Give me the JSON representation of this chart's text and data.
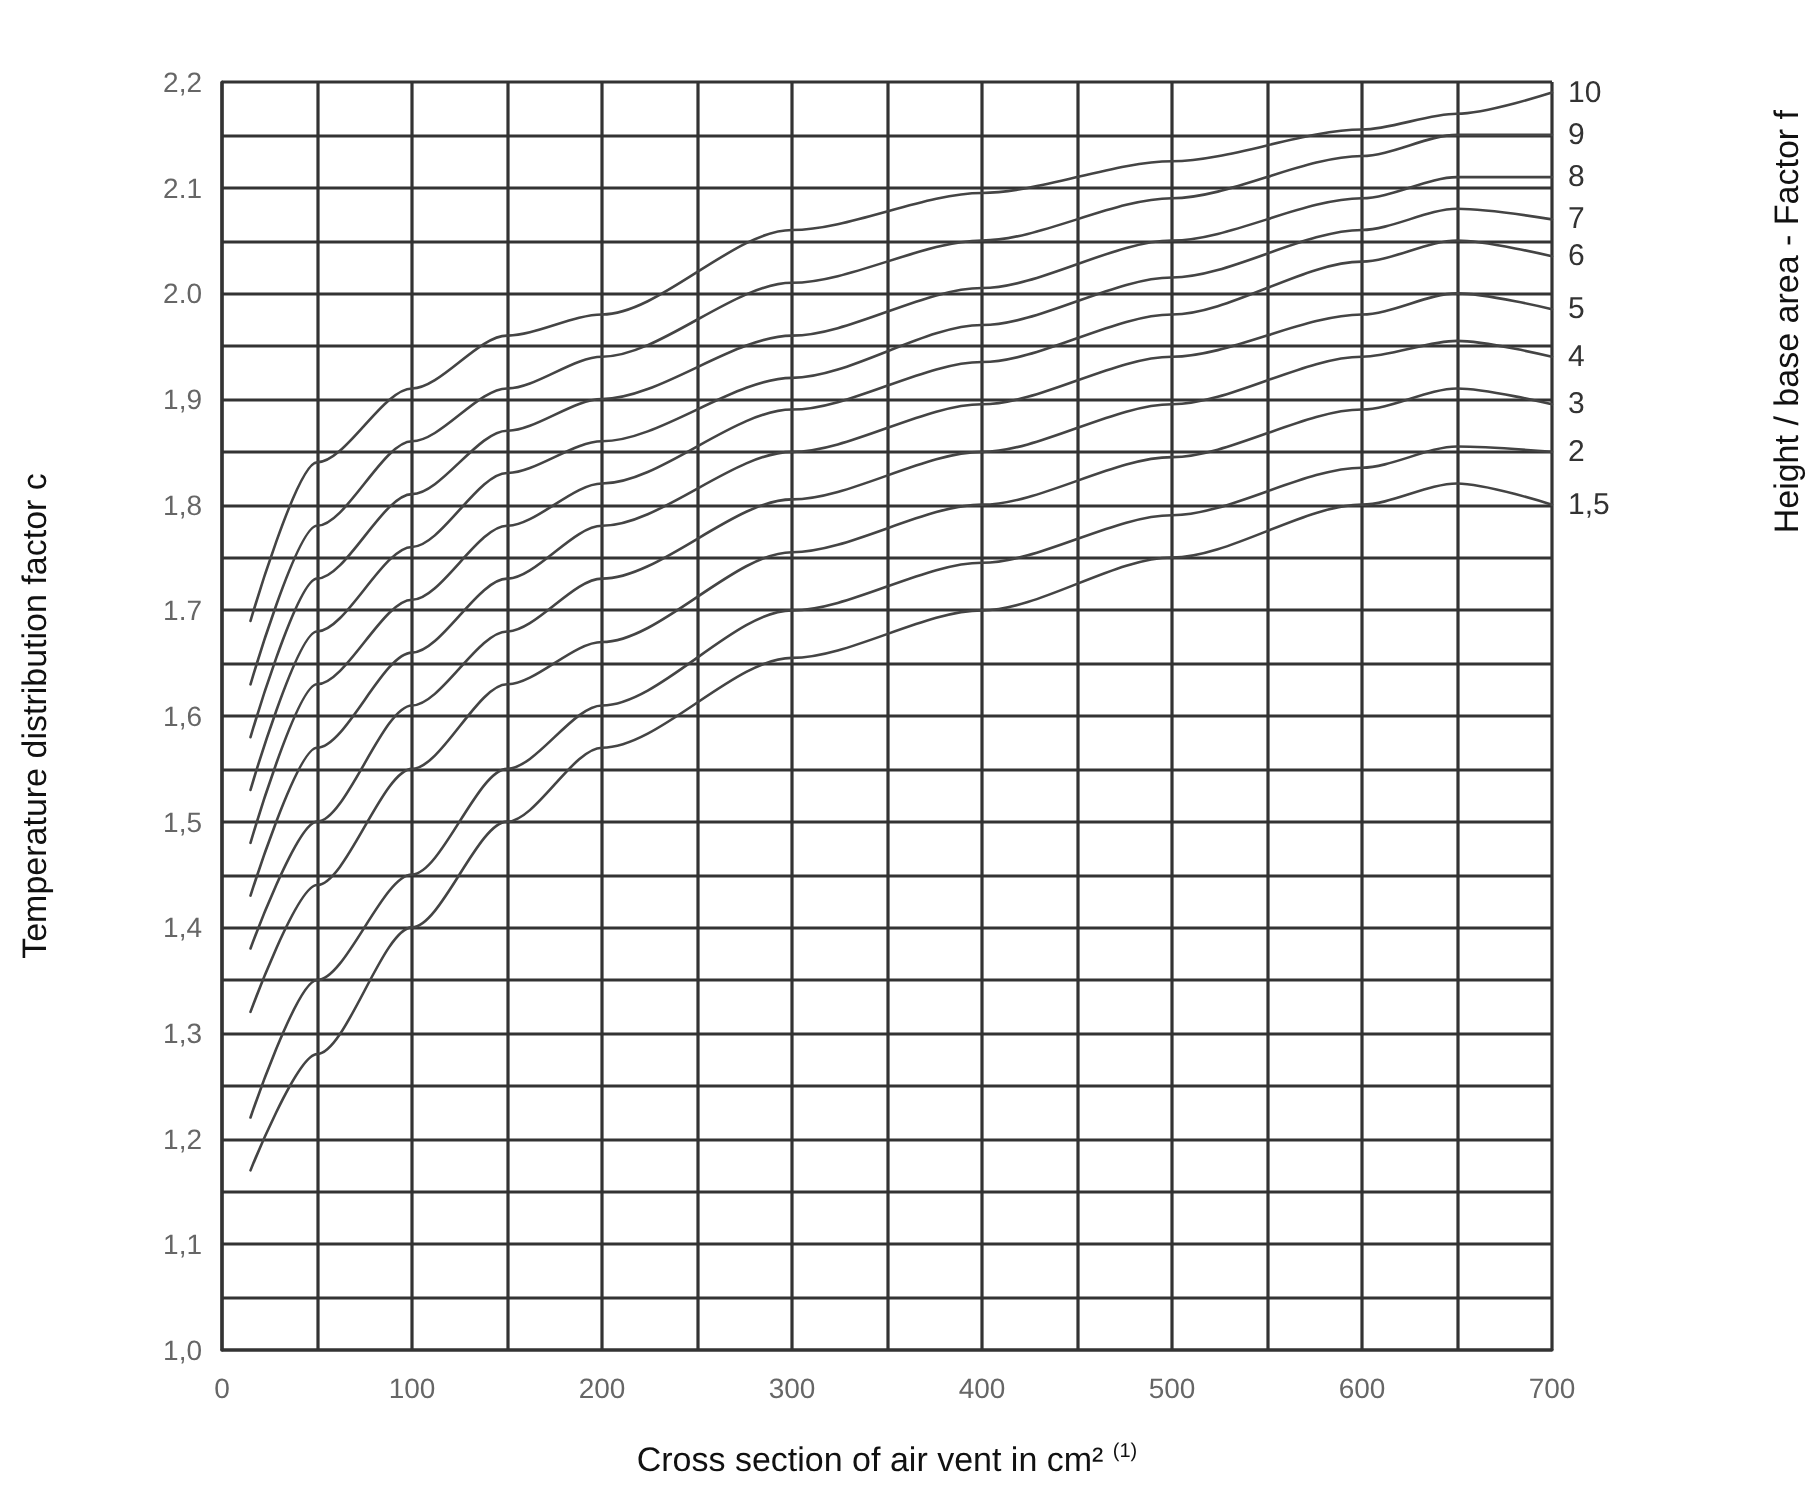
{
  "chart_data": {
    "type": "line",
    "xlabel": "Cross section of air vent in cm² $^{(1)}$",
    "ylabel": "Temperature distribution factor c",
    "annotations": [
      "Height / base area - Factor f"
    ],
    "x": [
      15,
      50,
      100,
      150,
      200,
      300,
      400,
      500,
      600,
      650,
      700
    ],
    "series": [
      {
        "name": "10",
        "color": "#444444",
        "values": [
          1.69,
          1.84,
          1.91,
          1.96,
          1.98,
          2.06,
          2.095,
          2.125,
          2.155,
          2.17,
          2.19
        ]
      },
      {
        "name": "9",
        "color": "#444444",
        "values": [
          1.63,
          1.78,
          1.86,
          1.91,
          1.94,
          2.01,
          2.05,
          2.09,
          2.13,
          2.15,
          2.15
        ]
      },
      {
        "name": "8",
        "color": "#444444",
        "values": [
          1.58,
          1.73,
          1.81,
          1.87,
          1.9,
          1.96,
          2.005,
          2.05,
          2.09,
          2.11,
          2.11
        ]
      },
      {
        "name": "7",
        "color": "#444444",
        "values": [
          1.53,
          1.68,
          1.76,
          1.83,
          1.86,
          1.92,
          1.97,
          2.015,
          2.06,
          2.08,
          2.07
        ]
      },
      {
        "name": "6",
        "color": "#444444",
        "values": [
          1.48,
          1.63,
          1.71,
          1.78,
          1.82,
          1.89,
          1.935,
          1.98,
          2.03,
          2.05,
          2.035
        ]
      },
      {
        "name": "5",
        "color": "#444444",
        "values": [
          1.43,
          1.57,
          1.66,
          1.73,
          1.78,
          1.85,
          1.895,
          1.94,
          1.98,
          2.0,
          1.985
        ]
      },
      {
        "name": "4",
        "color": "#444444",
        "values": [
          1.38,
          1.5,
          1.61,
          1.68,
          1.73,
          1.805,
          1.85,
          1.895,
          1.94,
          1.955,
          1.94
        ]
      },
      {
        "name": "3",
        "color": "#444444",
        "values": [
          1.32,
          1.44,
          1.55,
          1.63,
          1.67,
          1.755,
          1.8,
          1.845,
          1.89,
          1.91,
          1.895
        ]
      },
      {
        "name": "2",
        "color": "#444444",
        "values": [
          1.22,
          1.35,
          1.45,
          1.55,
          1.61,
          1.7,
          1.745,
          1.79,
          1.835,
          1.855,
          1.85
        ]
      },
      {
        "name": "1,5",
        "color": "#444444",
        "values": [
          1.17,
          1.28,
          1.4,
          1.5,
          1.57,
          1.655,
          1.7,
          1.75,
          1.8,
          1.82,
          1.8
        ]
      }
    ],
    "xlim": [
      0,
      700
    ],
    "xticks": [
      0,
      {
        "value": 50,
        "label": null
      },
      100,
      {
        "value": 150,
        "label": null
      },
      200,
      {
        "value": 250,
        "label": null
      },
      300,
      {
        "value": 350,
        "label": null
      },
      400,
      {
        "value": 450,
        "label": null
      },
      500,
      {
        "value": 550,
        "label": null
      },
      600,
      {
        "value": 650,
        "label": null
      },
      700
    ],
    "ylim": [
      1.0,
      2.2
    ],
    "yticks": [
      {
        "value": 1.0,
        "label": "1,0"
      },
      {
        "value": 1.05,
        "label": null
      },
      {
        "value": 1.1,
        "label": "1,1"
      },
      {
        "value": 1.15,
        "label": null
      },
      {
        "value": 1.2,
        "label": "1,2"
      },
      {
        "value": 1.25,
        "label": null
      },
      {
        "value": 1.3,
        "label": "1,3"
      },
      {
        "value": 1.35,
        "label": null
      },
      {
        "value": 1.4,
        "label": "1,4"
      },
      {
        "value": 1.45,
        "label": null
      },
      {
        "value": 1.5,
        "label": "1,5"
      },
      {
        "value": 1.55,
        "label": null
      },
      {
        "value": 1.6,
        "label": "1,6"
      },
      {
        "value": 1.65,
        "label": null
      },
      {
        "value": 1.7,
        "label": "1.7"
      },
      {
        "value": 1.75,
        "label": null
      },
      {
        "value": 1.8,
        "label": "1,8"
      },
      {
        "value": 1.85,
        "label": null
      },
      {
        "value": 1.9,
        "label": "1,9"
      },
      {
        "value": 1.95,
        "label": null
      },
      {
        "value": 2.0,
        "label": "2.0"
      },
      {
        "value": 2.05,
        "label": null
      },
      {
        "value": 2.1,
        "label": "2.1"
      },
      {
        "value": 2.15,
        "label": null
      },
      {
        "value": 2.2,
        "label": "2,2"
      }
    ],
    "grid": true,
    "legend": false,
    "marker": "none",
    "line_style": "solid"
  }
}
